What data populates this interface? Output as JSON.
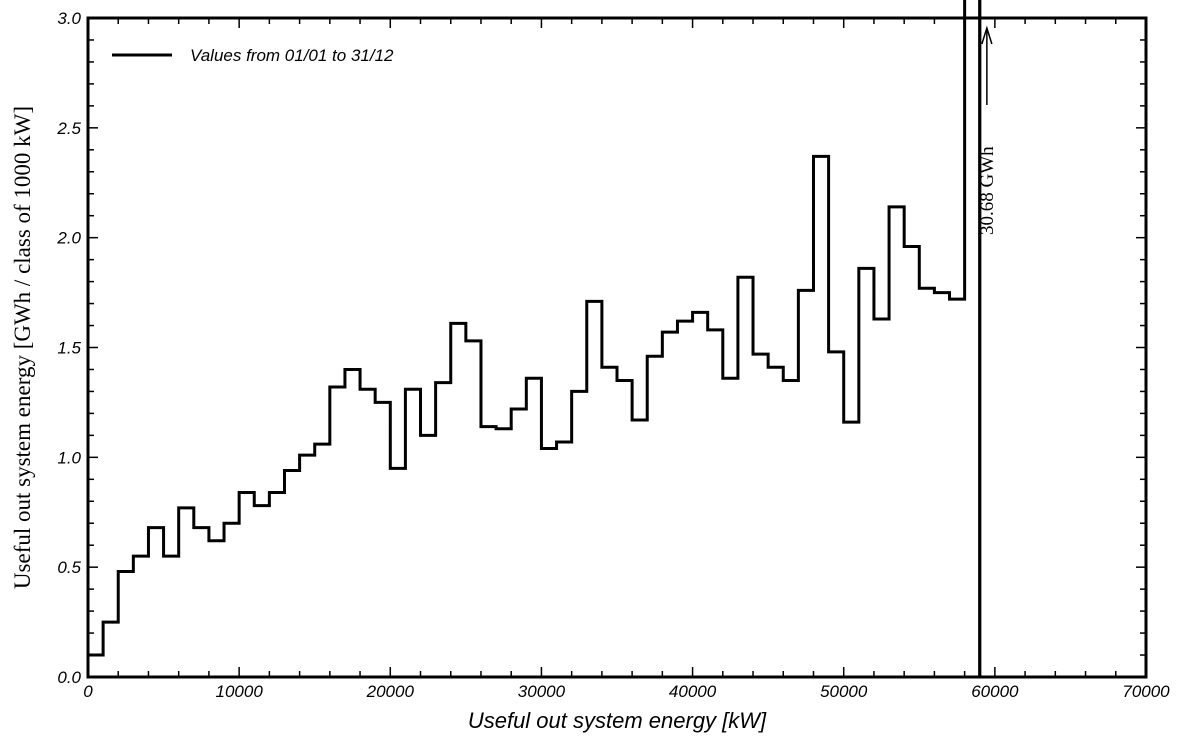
{
  "chart_data": {
    "type": "line",
    "step": true,
    "title": "",
    "xlabel": "Useful out system energy [kW]",
    "ylabel": "Useful out system energy [GWh / class of 1000 kW]",
    "xlim": [
      0,
      70000
    ],
    "ylim": [
      0.0,
      3.0
    ],
    "xticks": [
      0,
      10000,
      20000,
      30000,
      40000,
      50000,
      60000,
      70000
    ],
    "yticks": [
      "0.0",
      "0.5",
      "1.0",
      "1.5",
      "2.0",
      "2.5",
      "3.0"
    ],
    "grid": false,
    "legend": {
      "placement": "top-left",
      "entries": [
        "Values from 01/01 to 31/12"
      ]
    },
    "series": [
      {
        "name": "Values from 01/01 to 31/12",
        "bin_width": 1000,
        "x_start": 0,
        "values": [
          0.1,
          0.25,
          0.48,
          0.55,
          0.68,
          0.55,
          0.77,
          0.68,
          0.62,
          0.7,
          0.84,
          0.78,
          0.84,
          0.94,
          1.01,
          1.06,
          1.32,
          1.4,
          1.31,
          1.25,
          0.95,
          1.31,
          1.1,
          1.34,
          1.61,
          1.53,
          1.14,
          1.13,
          1.22,
          1.36,
          1.04,
          1.07,
          1.3,
          1.71,
          1.41,
          1.35,
          1.17,
          1.46,
          1.57,
          1.62,
          1.66,
          1.58,
          1.36,
          1.82,
          1.47,
          1.41,
          1.35,
          1.76,
          2.37,
          1.48,
          1.16,
          1.86,
          1.63,
          2.14,
          1.96,
          1.77,
          1.75,
          1.72,
          30.68
        ]
      }
    ],
    "annotations": [
      {
        "text": "30.68 GWh",
        "x": 60000,
        "arrow": "up"
      }
    ],
    "marker_line_x": 59000
  }
}
